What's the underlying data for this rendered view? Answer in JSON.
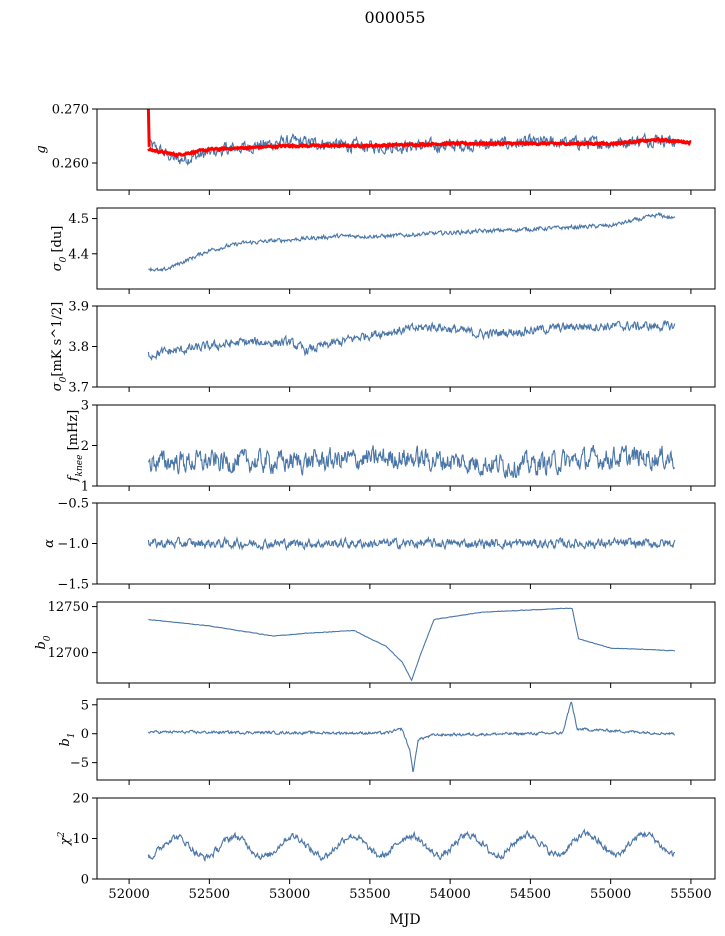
{
  "figure_title": "000055",
  "x_axis_label": "MJD",
  "colors": {
    "series": "#4a76a8",
    "fit": "#ff0000",
    "axis": "#000000"
  },
  "chart_data": {
    "type": "line",
    "xlim": [
      51800,
      55650
    ],
    "x_ticks": [
      52000,
      52500,
      53000,
      53500,
      54000,
      54500,
      55000,
      55500
    ],
    "x_tick_labels": [
      "52000",
      "52500",
      "53000",
      "53500",
      "54000",
      "54500",
      "55000",
      "55500"
    ],
    "x_start": 52120,
    "x_end": 55400,
    "panels": [
      {
        "id": "g",
        "ylabel_main": "g",
        "ylabel_sub": "",
        "ylim": [
          0.255,
          0.27
        ],
        "y_ticks": [
          0.26,
          0.27
        ],
        "y_tick_labels": [
          "0.260",
          "0.270"
        ],
        "series": [
          {
            "color": "#4a76a8",
            "noise": 0.0012,
            "anchors": [
              [
                52120,
                0.2635
              ],
              [
                52300,
                0.2605
              ],
              [
                52600,
                0.2625
              ],
              [
                53000,
                0.264
              ],
              [
                53500,
                0.263
              ],
              [
                54000,
                0.2632
              ],
              [
                54500,
                0.2638
              ],
              [
                55000,
                0.2637
              ],
              [
                55300,
                0.2645
              ],
              [
                55400,
                0.264
              ]
            ]
          },
          {
            "color": "#ff0000",
            "noise": 0.0002,
            "anchors": [
              [
                52120,
                0.2625
              ],
              [
                52300,
                0.2615
              ],
              [
                52500,
                0.2625
              ],
              [
                53000,
                0.2632
              ],
              [
                53500,
                0.2632
              ],
              [
                54000,
                0.2636
              ],
              [
                54500,
                0.2636
              ],
              [
                55000,
                0.2636
              ],
              [
                55300,
                0.2643
              ],
              [
                55500,
                0.2638
              ]
            ],
            "spike": [
              [
                52120,
                0.27
              ],
              [
                52125,
                0.263
              ]
            ]
          }
        ]
      },
      {
        "id": "sigma0_du",
        "ylabel_main": "σ",
        "ylabel_sub": "0",
        "ylabel_rest": " [du]",
        "ylim": [
          4.3,
          4.53
        ],
        "y_ticks": [
          4.4,
          4.5
        ],
        "y_tick_labels": [
          "4.4",
          "4.5"
        ],
        "series": [
          {
            "color": "#4a76a8",
            "noise": 0.006,
            "anchors": [
              [
                52120,
                4.36
              ],
              [
                52200,
                4.35
              ],
              [
                52500,
                4.41
              ],
              [
                52700,
                4.43
              ],
              [
                53000,
                4.44
              ],
              [
                53300,
                4.45
              ],
              [
                53600,
                4.45
              ],
              [
                54000,
                4.46
              ],
              [
                54500,
                4.47
              ],
              [
                55000,
                4.48
              ],
              [
                55300,
                4.51
              ],
              [
                55400,
                4.5
              ]
            ]
          }
        ]
      },
      {
        "id": "sigma0_mk",
        "ylabel_main": "σ",
        "ylabel_sub": "0",
        "ylabel_rest": "[mK s^1/2]",
        "ylim": [
          3.7,
          3.9
        ],
        "y_ticks": [
          3.7,
          3.8,
          3.9
        ],
        "y_tick_labels": [
          "3.7",
          "3.8",
          "3.9"
        ],
        "series": [
          {
            "color": "#4a76a8",
            "noise": 0.012,
            "anchors": [
              [
                52120,
                3.78
              ],
              [
                52300,
                3.79
              ],
              [
                52700,
                3.81
              ],
              [
                53000,
                3.81
              ],
              [
                53100,
                3.79
              ],
              [
                53500,
                3.83
              ],
              [
                53900,
                3.85
              ],
              [
                54200,
                3.83
              ],
              [
                54800,
                3.85
              ],
              [
                55400,
                3.85
              ]
            ]
          }
        ]
      },
      {
        "id": "fknee",
        "ylabel_main": "f",
        "ylabel_sub": "knee",
        "ylabel_rest": " [mHz]",
        "ylim": [
          1,
          3
        ],
        "y_ticks": [
          1,
          2,
          3
        ],
        "y_tick_labels": [
          "1",
          "2",
          "3"
        ],
        "series": [
          {
            "color": "#4a76a8",
            "noise": 0.28,
            "anchors": [
              [
                52120,
                1.6
              ],
              [
                53000,
                1.6
              ],
              [
                53700,
                1.7
              ],
              [
                54400,
                1.5
              ],
              [
                55000,
                1.7
              ],
              [
                55400,
                1.7
              ]
            ]
          }
        ]
      },
      {
        "id": "alpha",
        "ylabel_main": "α",
        "ylabel_sub": "",
        "ylim": [
          -1.5,
          -0.5
        ],
        "y_ticks": [
          -1.5,
          -1.0,
          -0.5
        ],
        "y_tick_labels": [
          "−1.5",
          "−1.0",
          "−0.5"
        ],
        "series": [
          {
            "color": "#4a76a8",
            "noise": 0.06,
            "anchors": [
              [
                52120,
                -1.0
              ],
              [
                55400,
                -1.0
              ]
            ]
          }
        ]
      },
      {
        "id": "b0",
        "ylabel_main": "b",
        "ylabel_sub": "0",
        "ylim": [
          12667,
          12755
        ],
        "y_ticks": [
          12700,
          12750
        ],
        "y_tick_labels": [
          "12700",
          "12750"
        ],
        "series": [
          {
            "color": "#4a76a8",
            "noise": 0.3,
            "anchors": [
              [
                52120,
                12736
              ],
              [
                52500,
                12729
              ],
              [
                52900,
                12718
              ],
              [
                53100,
                12721
              ],
              [
                53400,
                12724
              ],
              [
                53600,
                12707
              ],
              [
                53700,
                12690
              ],
              [
                53760,
                12670
              ],
              [
                53820,
                12700
              ],
              [
                53900,
                12736
              ],
              [
                54200,
                12744
              ],
              [
                54700,
                12748
              ],
              [
                54760,
                12748
              ],
              [
                54800,
                12715
              ],
              [
                55000,
                12705
              ],
              [
                55400,
                12702
              ]
            ]
          }
        ]
      },
      {
        "id": "b1",
        "ylabel_main": "b",
        "ylabel_sub": "1",
        "ylim": [
          -8,
          6
        ],
        "y_ticks": [
          -5,
          0,
          5
        ],
        "y_tick_labels": [
          "−5",
          "0",
          "5"
        ],
        "series": [
          {
            "color": "#4a76a8",
            "noise": 0.25,
            "anchors": [
              [
                52120,
                0.3
              ],
              [
                53600,
                0.1
              ],
              [
                53700,
                0.8
              ],
              [
                53750,
                -3
              ],
              [
                53770,
                -6.8
              ],
              [
                53800,
                -1
              ],
              [
                53900,
                -0.2
              ],
              [
                54700,
                0.1
              ],
              [
                54755,
                5.6
              ],
              [
                54790,
                0.8
              ],
              [
                55400,
                0.0
              ]
            ]
          }
        ]
      },
      {
        "id": "chi2",
        "ylabel_main": "χ",
        "ylabel_sub": "",
        "ylabel_sup": "2",
        "ylim": [
          0,
          20
        ],
        "y_ticks": [
          0,
          10,
          20
        ],
        "y_tick_labels": [
          "0",
          "10",
          "20"
        ],
        "series": [
          {
            "color": "#4a76a8",
            "noise": 0.9,
            "periodic": {
              "period": 365,
              "amplitude": 2.5,
              "mean": 7.8
            },
            "anchors": [
              [
                52120,
                7
              ],
              [
                55400,
                10
              ]
            ]
          }
        ]
      }
    ]
  }
}
